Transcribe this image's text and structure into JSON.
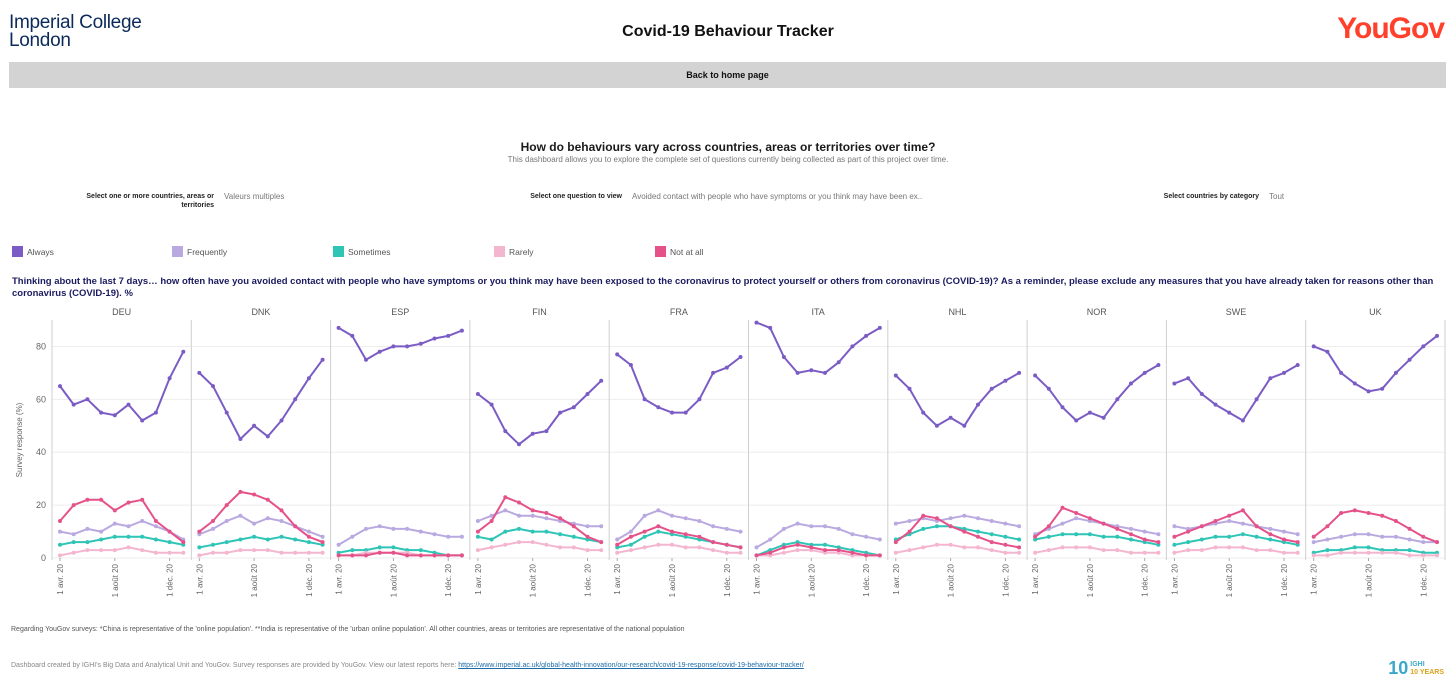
{
  "header": {
    "left_logo": "Imperial College London",
    "title": "Covid-19 Behaviour Tracker",
    "right_logo": "YouGov"
  },
  "nav": {
    "home_label": "Back to home page"
  },
  "intro": {
    "heading": "How do behaviours vary across countries, areas or territories over time?",
    "subheading": "This dashboard allows you to explore the complete set of questions currently being collected as part of this project over time."
  },
  "filters": {
    "countries_label": "Select one or more countries, areas or territories",
    "countries_value": "Valeurs multiples",
    "question_label": "Select one question to view",
    "question_value": "Avoided contact with people who have symptoms or you think may have been ex..",
    "category_label": "Select countries by category",
    "category_value": "Tout"
  },
  "legend": [
    {
      "label": "Always",
      "color": "#7b5cc4"
    },
    {
      "label": "Frequently",
      "color": "#b9a9e0"
    },
    {
      "label": "Sometimes",
      "color": "#2ec4b6"
    },
    {
      "label": "Rarely",
      "color": "#f4b6cf"
    },
    {
      "label": "Not at all",
      "color": "#e5528a"
    }
  ],
  "question_text": "Thinking about the last 7 days… how often have you avoided contact with people who have symptoms or you think may have been exposed to the coronavirus to protect yourself or others from coronavirus (COVID-19)? As a reminder, please exclude any measures that you have already taken for reasons other than coronavirus (COVID-19). %",
  "chart_data": {
    "type": "line",
    "ylabel": "Survey response (%)",
    "ylim": [
      0,
      90
    ],
    "yticks": [
      0,
      20,
      40,
      60,
      80
    ],
    "xticks": [
      "1 avr. 20",
      "1 août 20",
      "1 déc. 20"
    ],
    "x": [
      "1 avr. 20",
      "1 mai 20",
      "1 juin 20",
      "1 juil. 20",
      "1 août 20",
      "1 sept. 20",
      "1 oct. 20",
      "1 nov. 20",
      "1 déc. 20",
      "1 janv. 21"
    ],
    "series_names": [
      "Always",
      "Frequently",
      "Sometimes",
      "Rarely",
      "Not at all"
    ],
    "panels": [
      {
        "name": "DEU",
        "series": [
          [
            65,
            58,
            60,
            55,
            54,
            58,
            52,
            55,
            68,
            78
          ],
          [
            10,
            9,
            11,
            10,
            13,
            12,
            14,
            12,
            10,
            7
          ],
          [
            5,
            6,
            6,
            7,
            8,
            8,
            8,
            7,
            6,
            5
          ],
          [
            1,
            2,
            3,
            3,
            3,
            4,
            3,
            2,
            2,
            2
          ],
          [
            14,
            20,
            22,
            22,
            18,
            21,
            22,
            14,
            10,
            6
          ]
        ]
      },
      {
        "name": "DNK",
        "series": [
          [
            70,
            65,
            55,
            45,
            50,
            46,
            52,
            60,
            68,
            75
          ],
          [
            9,
            11,
            14,
            16,
            13,
            15,
            14,
            12,
            10,
            8
          ],
          [
            4,
            5,
            6,
            7,
            8,
            7,
            8,
            7,
            6,
            5
          ],
          [
            1,
            2,
            2,
            3,
            3,
            3,
            2,
            2,
            2,
            2
          ],
          [
            10,
            14,
            20,
            25,
            24,
            22,
            18,
            12,
            8,
            6
          ]
        ]
      },
      {
        "name": "ESP",
        "series": [
          [
            87,
            84,
            75,
            78,
            80,
            80,
            81,
            83,
            84,
            86
          ],
          [
            5,
            8,
            11,
            12,
            11,
            11,
            10,
            9,
            8,
            8
          ],
          [
            2,
            3,
            3,
            4,
            4,
            3,
            3,
            2,
            1,
            1
          ],
          [
            1,
            1,
            2,
            2,
            2,
            2,
            1,
            1,
            1,
            1
          ],
          [
            1,
            1,
            1,
            2,
            2,
            1,
            1,
            1,
            1,
            1
          ]
        ]
      },
      {
        "name": "FIN",
        "series": [
          [
            62,
            58,
            48,
            43,
            47,
            48,
            55,
            57,
            62,
            67
          ],
          [
            14,
            16,
            18,
            16,
            16,
            15,
            14,
            13,
            12,
            12
          ],
          [
            8,
            7,
            10,
            11,
            10,
            10,
            9,
            8,
            7,
            6
          ],
          [
            3,
            4,
            5,
            6,
            6,
            5,
            4,
            4,
            3,
            3
          ],
          [
            10,
            14,
            23,
            21,
            18,
            17,
            15,
            12,
            8,
            6
          ]
        ]
      },
      {
        "name": "FRA",
        "series": [
          [
            77,
            73,
            60,
            57,
            55,
            55,
            60,
            70,
            72,
            76
          ],
          [
            7,
            10,
            16,
            18,
            16,
            15,
            14,
            12,
            11,
            10
          ],
          [
            4,
            5,
            8,
            10,
            9,
            8,
            7,
            6,
            5,
            4
          ],
          [
            2,
            3,
            4,
            5,
            5,
            4,
            4,
            3,
            2,
            2
          ],
          [
            5,
            8,
            10,
            12,
            10,
            9,
            8,
            6,
            5,
            4
          ]
        ]
      },
      {
        "name": "ITA",
        "series": [
          [
            89,
            87,
            76,
            70,
            71,
            70,
            74,
            80,
            84,
            87
          ],
          [
            4,
            7,
            11,
            13,
            12,
            12,
            11,
            9,
            8,
            7
          ],
          [
            1,
            3,
            5,
            6,
            5,
            5,
            4,
            3,
            2,
            1
          ],
          [
            1,
            1,
            2,
            3,
            3,
            2,
            2,
            1,
            1,
            1
          ],
          [
            1,
            2,
            4,
            5,
            4,
            3,
            3,
            2,
            1,
            1
          ]
        ]
      },
      {
        "name": "NHL",
        "series": [
          [
            69,
            64,
            55,
            50,
            53,
            50,
            58,
            64,
            67,
            70
          ],
          [
            13,
            14,
            15,
            14,
            15,
            16,
            15,
            14,
            13,
            12
          ],
          [
            7,
            9,
            11,
            12,
            12,
            11,
            10,
            9,
            8,
            7
          ],
          [
            2,
            3,
            4,
            5,
            5,
            4,
            4,
            3,
            2,
            2
          ],
          [
            6,
            10,
            16,
            15,
            12,
            10,
            8,
            6,
            5,
            4
          ]
        ]
      },
      {
        "name": "NOR",
        "series": [
          [
            69,
            64,
            57,
            52,
            55,
            53,
            60,
            66,
            70,
            73
          ],
          [
            9,
            11,
            13,
            15,
            14,
            13,
            12,
            11,
            10,
            9
          ],
          [
            7,
            8,
            9,
            9,
            9,
            8,
            8,
            7,
            6,
            5
          ],
          [
            2,
            3,
            4,
            4,
            4,
            3,
            3,
            2,
            2,
            2
          ],
          [
            8,
            12,
            19,
            17,
            15,
            13,
            11,
            9,
            7,
            6
          ]
        ]
      },
      {
        "name": "SWE",
        "series": [
          [
            66,
            68,
            62,
            58,
            55,
            52,
            60,
            68,
            70,
            73
          ],
          [
            12,
            11,
            12,
            13,
            14,
            13,
            12,
            11,
            10,
            9
          ],
          [
            5,
            6,
            7,
            8,
            8,
            9,
            8,
            7,
            6,
            5
          ],
          [
            2,
            3,
            3,
            4,
            4,
            4,
            3,
            3,
            2,
            2
          ],
          [
            8,
            10,
            12,
            14,
            16,
            18,
            12,
            9,
            7,
            6
          ]
        ]
      },
      {
        "name": "UK",
        "series": [
          [
            80,
            78,
            70,
            66,
            63,
            64,
            70,
            75,
            80,
            84
          ],
          [
            6,
            7,
            8,
            9,
            9,
            8,
            8,
            7,
            6,
            6
          ],
          [
            2,
            3,
            3,
            4,
            4,
            3,
            3,
            3,
            2,
            2
          ],
          [
            1,
            1,
            2,
            2,
            2,
            2,
            2,
            1,
            1,
            1
          ],
          [
            8,
            12,
            17,
            18,
            17,
            16,
            14,
            11,
            8,
            6
          ]
        ]
      }
    ]
  },
  "footer": {
    "footnote": "Regarding YouGov surveys: *China is representative of the 'online population'. **India is representative of the 'urban online population'. All other countries, areas or territories are representative of the national population",
    "credit_text": "Dashboard created by IGHI's Big Data and Analytical Unit and YouGov. Survey responses are provided by YouGov. View our latest reports here:",
    "credit_link": "https://www.imperial.ac.uk/global-health-innovation/our-research/covid-19-response/covid-19-behaviour-tracker/",
    "ighi_mark": "10",
    "ighi_line1": "IGHI",
    "ighi_line2": "10 YEARS"
  }
}
